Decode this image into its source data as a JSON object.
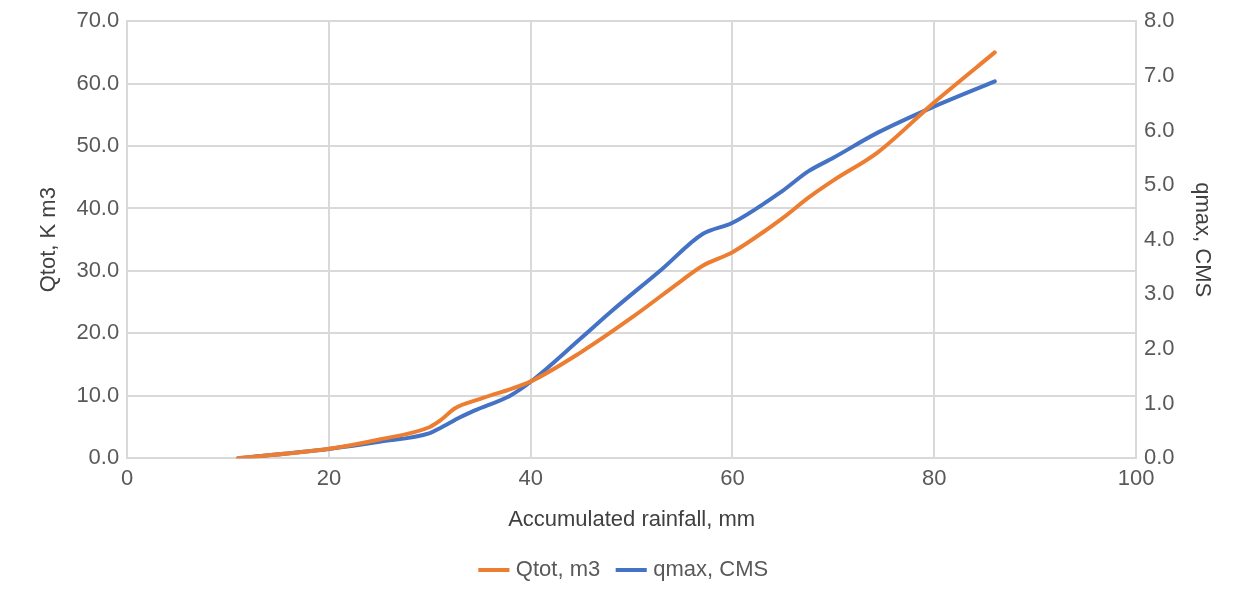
{
  "chart_data": {
    "type": "line",
    "xlabel": "Accumulated rainfall, mm",
    "ylabel": "Qtot, K m3",
    "y2label": "qmax, CMS",
    "xlim": [
      0,
      100
    ],
    "xticks": [
      0,
      20,
      40,
      60,
      80,
      100
    ],
    "ylim": [
      0,
      70
    ],
    "yticks": [
      {
        "value": 0,
        "label": "0.0"
      },
      {
        "value": 10,
        "label": "10.0"
      },
      {
        "value": 20,
        "label": "20.0"
      },
      {
        "value": 30,
        "label": "30.0"
      },
      {
        "value": 40,
        "label": "40.0"
      },
      {
        "value": 50,
        "label": "50.0"
      },
      {
        "value": 60,
        "label": "60.0"
      },
      {
        "value": 70,
        "label": "70.0"
      }
    ],
    "y2lim": [
      0,
      8
    ],
    "y2ticks": [
      {
        "value": 0,
        "label": "0.0"
      },
      {
        "value": 1,
        "label": "1.0"
      },
      {
        "value": 2,
        "label": "2.0"
      },
      {
        "value": 3,
        "label": "3.0"
      },
      {
        "value": 4,
        "label": "4.0"
      },
      {
        "value": 5,
        "label": "5.0"
      },
      {
        "value": 6,
        "label": "6.0"
      },
      {
        "value": 7,
        "label": "7.0"
      },
      {
        "value": 8,
        "label": "8.0"
      }
    ],
    "grid": true,
    "legend": "bottom",
    "marker": "none",
    "series": [
      {
        "name": "Qtot, m3",
        "color": "#ed7d31",
        "x": [
          11,
          20,
          25,
          30,
          31,
          32.5,
          35,
          40,
          45,
          50,
          55,
          57,
          60,
          65,
          67.5,
          70,
          74.4,
          80,
          86
        ],
        "values": [
          0.0,
          1.5,
          3.0,
          5.0,
          6.0,
          8.0,
          9.5,
          12.3,
          17.0,
          22.5,
          28.5,
          30.8,
          33.0,
          38.5,
          41.7,
          44.5,
          49.0,
          57.0,
          65.0
        ]
      },
      {
        "name": "qmax, CMS",
        "color": "#4472c4",
        "axis": "y2",
        "x": [
          11,
          20,
          25,
          30,
          31,
          33,
          34.4,
          38,
          40,
          45,
          48,
          53,
          57,
          60,
          65,
          67.5,
          70,
          74.4,
          80,
          86
        ],
        "values": [
          0.0,
          0.17,
          0.3,
          0.46,
          0.55,
          0.75,
          0.87,
          1.15,
          1.4,
          2.2,
          2.69,
          3.46,
          4.1,
          4.31,
          4.9,
          5.25,
          5.5,
          5.96,
          6.44,
          6.9
        ]
      }
    ]
  }
}
